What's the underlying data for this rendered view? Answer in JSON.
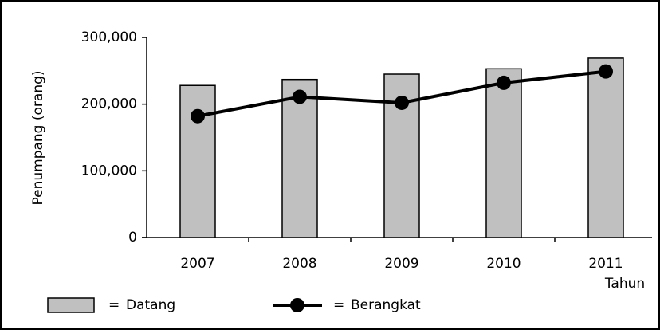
{
  "chart_data": {
    "type": "bar",
    "y_label": "Penumpang (orang)",
    "x_label": "Tahun",
    "categories": [
      "2007",
      "2008",
      "2009",
      "2010",
      "2011"
    ],
    "series": [
      {
        "name": "Datang",
        "type": "bar",
        "color": "#c0c0c0",
        "values": [
          228000,
          237000,
          245000,
          253000,
          269000
        ]
      },
      {
        "name": "Berangkat",
        "type": "line",
        "color": "#000000",
        "values": [
          182000,
          211000,
          202000,
          232000,
          249000
        ]
      }
    ],
    "legend_prefix": "=",
    "ylim": [
      0,
      300000
    ],
    "yticks": [
      0,
      {
        "value": 100000,
        "label": "100,000"
      },
      {
        "value": 200000,
        "label": "200,000"
      },
      {
        "value": 300000,
        "label": "300,000"
      }
    ]
  }
}
